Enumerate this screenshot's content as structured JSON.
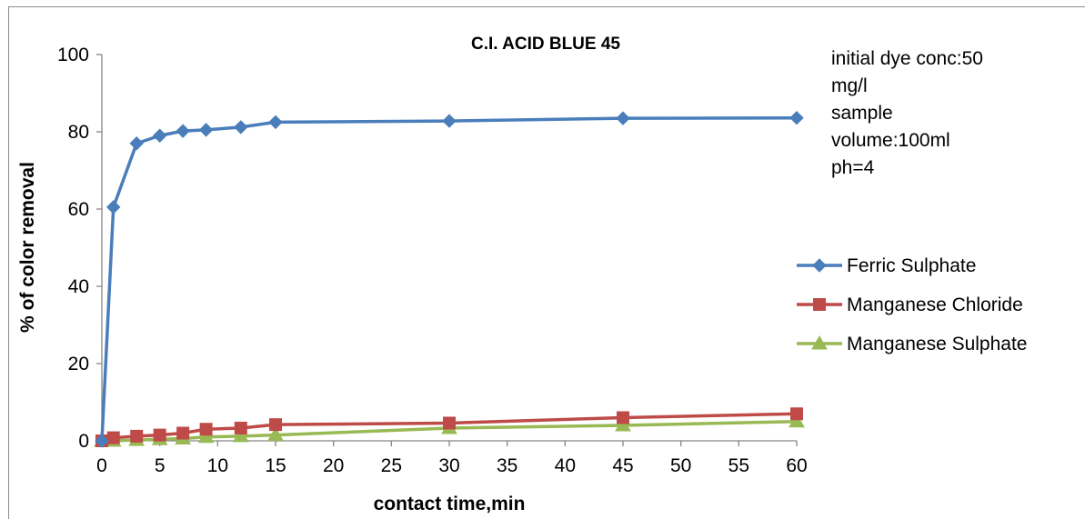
{
  "chart_data": {
    "type": "line",
    "title": "C.I. ACID BLUE 45",
    "xlabel": "contact time,min",
    "ylabel": "% of color removal",
    "xlim": [
      0,
      60
    ],
    "ylim": [
      0,
      100
    ],
    "x_ticks": [
      "0",
      "5",
      "10",
      "15",
      "20",
      "25",
      "30",
      "35",
      "40",
      "45",
      "50",
      "55",
      "60"
    ],
    "y_ticks": [
      "0",
      "20",
      "40",
      "60",
      "80",
      "100"
    ],
    "annotation": [
      "initial dye conc:50",
      "mg/l",
      "sample",
      "volume:100ml",
      "ph=4"
    ],
    "legend_position": "right",
    "grid": false,
    "series": [
      {
        "name": "Ferric Sulphate",
        "color": "#4a7ebb",
        "marker": "diamond",
        "points": [
          [
            0,
            0
          ],
          [
            1,
            60.5
          ],
          [
            3,
            77
          ],
          [
            5,
            79
          ],
          [
            7,
            80.2
          ],
          [
            9,
            80.5
          ],
          [
            12,
            81.2
          ],
          [
            15,
            82.5
          ],
          [
            30,
            82.8
          ],
          [
            45,
            83.5
          ],
          [
            60,
            83.6
          ]
        ]
      },
      {
        "name": "Manganese Chloride",
        "color": "#be4b48",
        "marker": "square",
        "points": [
          [
            0,
            0
          ],
          [
            1,
            0.8
          ],
          [
            3,
            1.2
          ],
          [
            5,
            1.5
          ],
          [
            7,
            2
          ],
          [
            9,
            3
          ],
          [
            12,
            3.3
          ],
          [
            15,
            4.2
          ],
          [
            30,
            4.6
          ],
          [
            45,
            6
          ],
          [
            60,
            7
          ]
        ]
      },
      {
        "name": "Manganese Sulphate",
        "color": "#98b954",
        "marker": "triangle",
        "points": [
          [
            0,
            0
          ],
          [
            1,
            0
          ],
          [
            3,
            0.2
          ],
          [
            5,
            0.4
          ],
          [
            7,
            0.6
          ],
          [
            9,
            1
          ],
          [
            12,
            1.2
          ],
          [
            15,
            1.5
          ],
          [
            30,
            3.3
          ],
          [
            45,
            4
          ],
          [
            60,
            5
          ]
        ]
      }
    ]
  }
}
